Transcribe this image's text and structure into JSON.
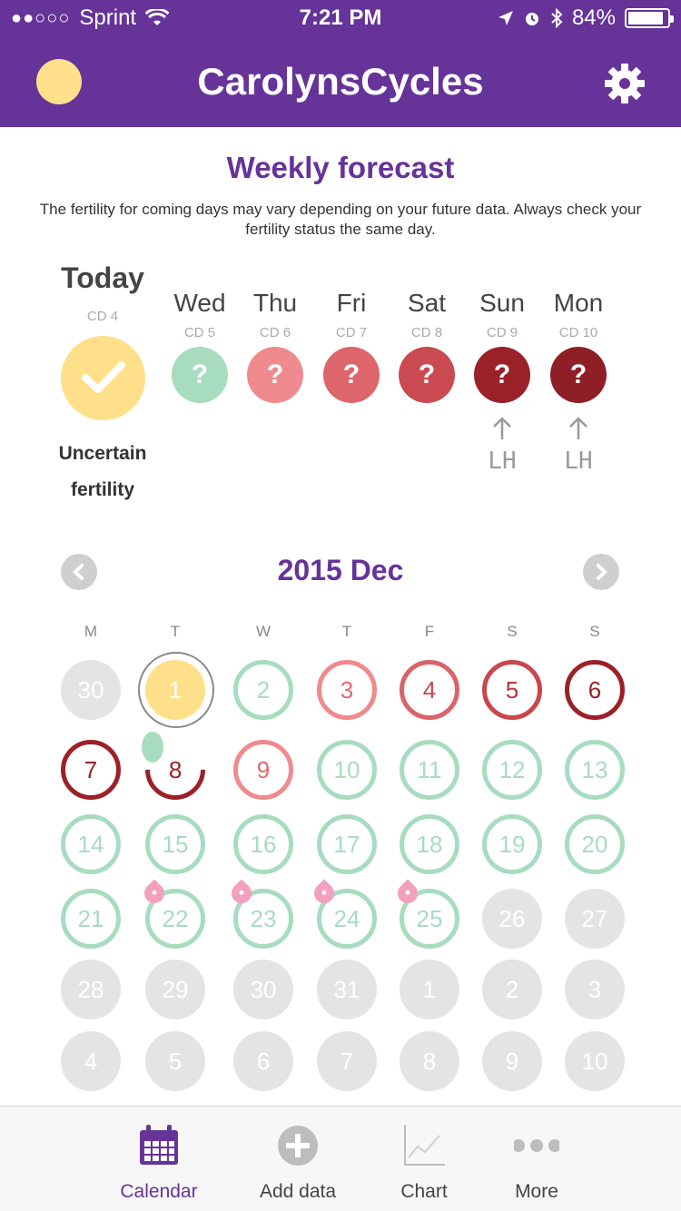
{
  "status_bar": {
    "carrier": "Sprint",
    "signal": "●●○○○",
    "time": "7:21 PM",
    "battery": "84%"
  },
  "header": {
    "title": "CarolynsCycles"
  },
  "forecast": {
    "title": "Weekly forecast",
    "description": "The fertility for coming days may vary depending on your future data. Always check your fertility status the same day.",
    "today": {
      "label": "Today",
      "cd": "CD 4",
      "status_line1": "Uncertain",
      "status_line2": "fertility"
    },
    "days": [
      {
        "name": "Wed",
        "cd": "CD 5",
        "symbol": "?",
        "color": "#a8dcbf",
        "lh": ""
      },
      {
        "name": "Thu",
        "cd": "CD 6",
        "symbol": "?",
        "color": "#ef8a8e",
        "lh": ""
      },
      {
        "name": "Fri",
        "cd": "CD 7",
        "symbol": "?",
        "color": "#dc666c",
        "lh": ""
      },
      {
        "name": "Sat",
        "cd": "CD 8",
        "symbol": "?",
        "color": "#c94a50",
        "lh": ""
      },
      {
        "name": "Sun",
        "cd": "CD 9",
        "symbol": "?",
        "color": "#9b2128",
        "lh": "LH"
      },
      {
        "name": "Mon",
        "cd": "CD 10",
        "symbol": "?",
        "color": "#8e1f26",
        "lh": "LH"
      }
    ]
  },
  "calendar": {
    "month_label": "2015 Dec",
    "weekdays": [
      "M",
      "T",
      "W",
      "T",
      "F",
      "S",
      "S"
    ],
    "rows": [
      [
        {
          "d": "30",
          "s": "grey"
        },
        {
          "d": "1",
          "s": "today"
        },
        {
          "d": "2",
          "s": "green"
        },
        {
          "d": "3",
          "s": "pink"
        },
        {
          "d": "4",
          "s": "red1"
        },
        {
          "d": "5",
          "s": "red2"
        },
        {
          "d": "6",
          "s": "dark"
        }
      ],
      [
        {
          "d": "7",
          "s": "dark"
        },
        {
          "d": "8",
          "s": "ring8"
        },
        {
          "d": "9",
          "s": "pink"
        },
        {
          "d": "10",
          "s": "green"
        },
        {
          "d": "11",
          "s": "green"
        },
        {
          "d": "12",
          "s": "green"
        },
        {
          "d": "13",
          "s": "green"
        }
      ],
      [
        {
          "d": "14",
          "s": "green"
        },
        {
          "d": "15",
          "s": "green"
        },
        {
          "d": "16",
          "s": "green"
        },
        {
          "d": "17",
          "s": "green"
        },
        {
          "d": "18",
          "s": "green"
        },
        {
          "d": "19",
          "s": "green"
        },
        {
          "d": "20",
          "s": "green"
        }
      ],
      [
        {
          "d": "21",
          "s": "green"
        },
        {
          "d": "22",
          "s": "green"
        },
        {
          "d": "23",
          "s": "green"
        },
        {
          "d": "24",
          "s": "green"
        },
        {
          "d": "25",
          "s": "green"
        },
        {
          "d": "26",
          "s": "grey"
        },
        {
          "d": "27",
          "s": "grey"
        }
      ],
      [
        {
          "d": "28",
          "s": "grey"
        },
        {
          "d": "29",
          "s": "grey"
        },
        {
          "d": "30",
          "s": "grey"
        },
        {
          "d": "31",
          "s": "grey"
        },
        {
          "d": "1",
          "s": "grey"
        },
        {
          "d": "2",
          "s": "grey"
        },
        {
          "d": "3",
          "s": "grey"
        }
      ],
      [
        {
          "d": "4",
          "s": "grey"
        },
        {
          "d": "5",
          "s": "grey"
        },
        {
          "d": "6",
          "s": "grey"
        },
        {
          "d": "7",
          "s": "grey"
        },
        {
          "d": "8",
          "s": "grey"
        },
        {
          "d": "9",
          "s": "grey"
        },
        {
          "d": "10",
          "s": "grey"
        }
      ]
    ]
  },
  "tabs": [
    {
      "label": "Calendar",
      "icon": "calendar-icon",
      "active": true
    },
    {
      "label": "Add data",
      "icon": "add-data-icon",
      "active": false
    },
    {
      "label": "Chart",
      "icon": "chart-icon",
      "active": false
    },
    {
      "label": "More",
      "icon": "more-icon",
      "active": false
    }
  ],
  "colors": {
    "brand_purple": "#663399",
    "fertile_green": "#a8dcbf",
    "today_yellow": "#ffe08a",
    "period_red": "#9b2128"
  }
}
